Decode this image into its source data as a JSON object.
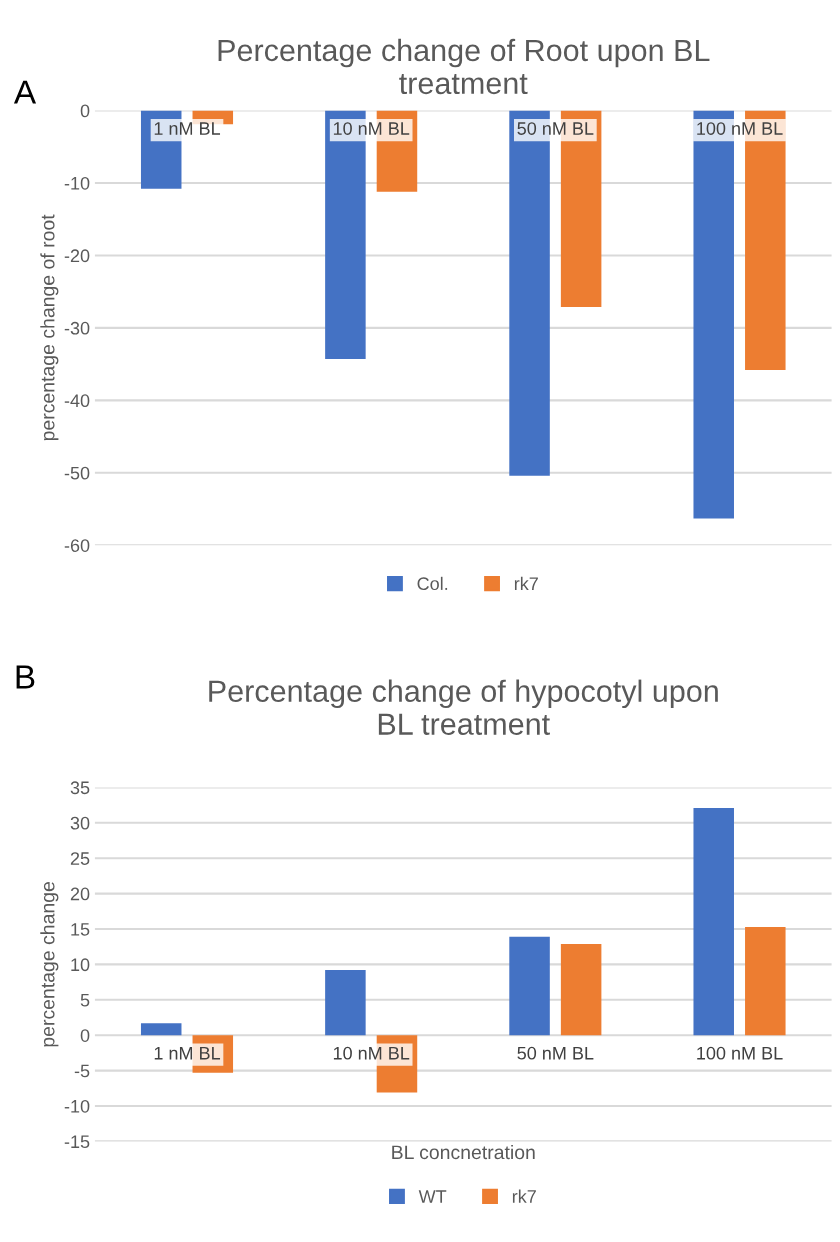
{
  "chart_data": [
    {
      "type": "bar",
      "title": "Percentage change of Root upon BL\ntreatment",
      "ylabel": "percentage change of root",
      "annotations": [
        "A"
      ],
      "categories": [
        "1 nM BL",
        "10 nM BL",
        "50 nM BL",
        "100 nM BL"
      ],
      "series": [
        {
          "name": "Col.",
          "color": "#4472c4",
          "values": [
            -10.8,
            -34.3,
            -50.4,
            -56.3
          ]
        },
        {
          "name": "rk7",
          "color": "#ed7d31",
          "values": [
            -1.9,
            -11.2,
            -27.1,
            -35.8
          ]
        }
      ],
      "ylim": [
        -60,
        0
      ],
      "yticks": [
        -60,
        -50,
        -40,
        -30,
        -20,
        -10,
        0
      ],
      "grid": "y",
      "legend": "bottom"
    },
    {
      "type": "bar",
      "title": "Percentage change of hypocotyl upon\nBL treatment",
      "ylabel": "percentage change",
      "xlabel": "BL concnetration",
      "annotations": [
        "B"
      ],
      "categories": [
        "1 nM BL",
        "10 nM BL",
        "50 nM BL",
        "100 nM BL"
      ],
      "series": [
        {
          "name": "WT",
          "color": "#4472c4",
          "values": [
            1.7,
            9.2,
            13.9,
            32.1
          ]
        },
        {
          "name": "rk7",
          "color": "#ed7d31",
          "values": [
            -5.3,
            -8.1,
            12.9,
            15.3
          ]
        }
      ],
      "ylim": [
        -15,
        35
      ],
      "yticks": [
        -15,
        -10,
        -5,
        0,
        5,
        10,
        15,
        20,
        25,
        30,
        35
      ],
      "grid": "y",
      "legend": "bottom"
    }
  ]
}
